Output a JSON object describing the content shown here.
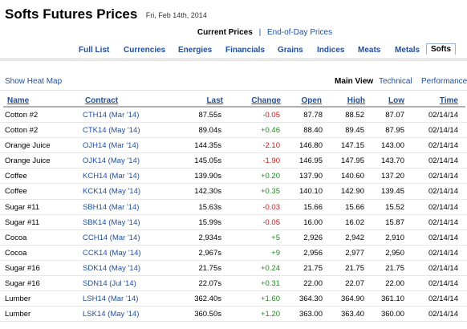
{
  "header": {
    "title": "Softs Futures Prices",
    "date": "Fri, Feb 14th, 2014"
  },
  "subnav": {
    "current": "Current Prices",
    "separator": "|",
    "end_of_day": "End-of-Day Prices"
  },
  "tabs": [
    {
      "label": "Full List"
    },
    {
      "label": "Currencies"
    },
    {
      "label": "Energies"
    },
    {
      "label": "Financials"
    },
    {
      "label": "Grains"
    },
    {
      "label": "Indices"
    },
    {
      "label": "Meats"
    },
    {
      "label": "Metals"
    },
    {
      "label": "Softs",
      "active": true
    }
  ],
  "controls": {
    "heat_map": "Show Heat Map",
    "main_view": "Main View",
    "technical": "Technical",
    "performance": "Performance"
  },
  "table": {
    "headers": {
      "name": "Name",
      "contract": "Contract",
      "last": "Last",
      "change": "Change",
      "open": "Open",
      "high": "High",
      "low": "Low",
      "time": "Time"
    },
    "rows": [
      {
        "name": "Cotton #2",
        "contract": "CTH14 (Mar '14)",
        "last": "87.55s",
        "change": "-0.05",
        "open": "87.78",
        "high": "88.52",
        "low": "87.07",
        "time": "02/14/14"
      },
      {
        "name": "Cotton #2",
        "contract": "CTK14 (May '14)",
        "last": "89.04s",
        "change": "+0.46",
        "open": "88.40",
        "high": "89.45",
        "low": "87.95",
        "time": "02/14/14"
      },
      {
        "name": "Orange Juice",
        "contract": "OJH14 (Mar '14)",
        "last": "144.35s",
        "change": "-2.10",
        "open": "146.80",
        "high": "147.15",
        "low": "143.00",
        "time": "02/14/14"
      },
      {
        "name": "Orange Juice",
        "contract": "OJK14 (May '14)",
        "last": "145.05s",
        "change": "-1.90",
        "open": "146.95",
        "high": "147.95",
        "low": "143.70",
        "time": "02/14/14"
      },
      {
        "name": "Coffee",
        "contract": "KCH14 (Mar '14)",
        "last": "139.90s",
        "change": "+0.20",
        "open": "137.90",
        "high": "140.60",
        "low": "137.20",
        "time": "02/14/14"
      },
      {
        "name": "Coffee",
        "contract": "KCK14 (May '14)",
        "last": "142.30s",
        "change": "+0.35",
        "open": "140.10",
        "high": "142.90",
        "low": "139.45",
        "time": "02/14/14"
      },
      {
        "name": "Sugar #11",
        "contract": "SBH14 (Mar '14)",
        "last": "15.63s",
        "change": "-0.03",
        "open": "15.66",
        "high": "15.66",
        "low": "15.52",
        "time": "02/14/14"
      },
      {
        "name": "Sugar #11",
        "contract": "SBK14 (May '14)",
        "last": "15.99s",
        "change": "-0.05",
        "open": "16.00",
        "high": "16.02",
        "low": "15.87",
        "time": "02/14/14"
      },
      {
        "name": "Cocoa",
        "contract": "CCH14 (Mar '14)",
        "last": "2,934s",
        "change": "+5",
        "open": "2,926",
        "high": "2,942",
        "low": "2,910",
        "time": "02/14/14"
      },
      {
        "name": "Cocoa",
        "contract": "CCK14 (May '14)",
        "last": "2,967s",
        "change": "+9",
        "open": "2,956",
        "high": "2,977",
        "low": "2,950",
        "time": "02/14/14"
      },
      {
        "name": "Sugar #16",
        "contract": "SDK14 (May '14)",
        "last": "21.75s",
        "change": "+0.24",
        "open": "21.75",
        "high": "21.75",
        "low": "21.75",
        "time": "02/14/14"
      },
      {
        "name": "Sugar #16",
        "contract": "SDN14 (Jul '14)",
        "last": "22.07s",
        "change": "+0.31",
        "open": "22.00",
        "high": "22.07",
        "low": "22.00",
        "time": "02/14/14"
      },
      {
        "name": "Lumber",
        "contract": "LSH14 (Mar '14)",
        "last": "362.40s",
        "change": "+1.60",
        "open": "364.30",
        "high": "364.90",
        "low": "361.10",
        "time": "02/14/14"
      },
      {
        "name": "Lumber",
        "contract": "LSK14 (May '14)",
        "last": "360.50s",
        "change": "+1.20",
        "open": "363.00",
        "high": "363.40",
        "low": "360.00",
        "time": "02/14/14"
      }
    ]
  },
  "colors": {
    "link": "#1f4f9f",
    "negative": "#d01818",
    "positive": "#1e8c1e"
  }
}
